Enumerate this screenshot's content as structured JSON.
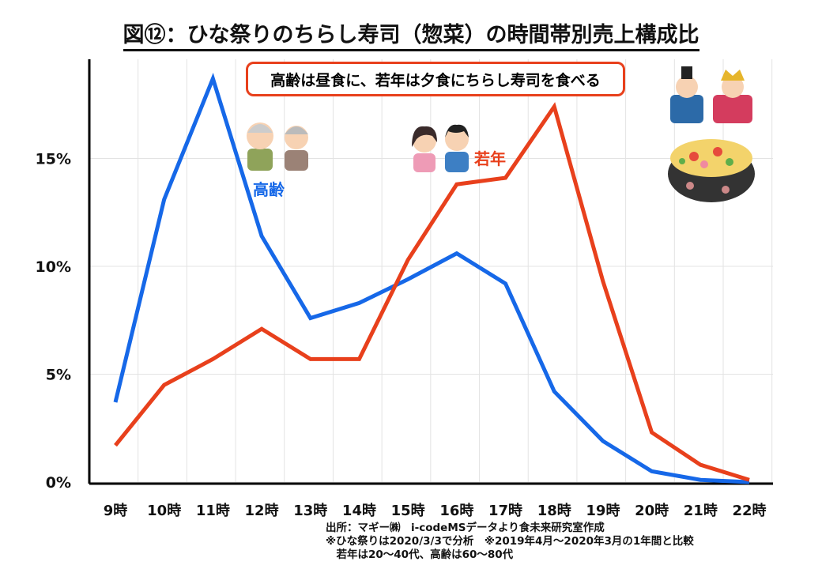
{
  "chart_data": {
    "type": "line",
    "title": "図⑫：ひな祭りのちらし寿司（惣菜）の時間帯別売上構成比",
    "categories": [
      "9時",
      "10時",
      "11時",
      "12時",
      "13時",
      "14時",
      "15時",
      "16時",
      "17時",
      "18時",
      "19時",
      "20時",
      "21時",
      "22時"
    ],
    "yticks": [
      {
        "v": 0,
        "label": "0%"
      },
      {
        "v": 5,
        "label": "5%"
      },
      {
        "v": 10,
        "label": "10%"
      },
      {
        "v": 15,
        "label": "15%"
      }
    ],
    "ylim": [
      0,
      19
    ],
    "grid": true,
    "series": [
      {
        "name": "高齢",
        "color": "#1668e8",
        "values": [
          3.7,
          13.1,
          18.7,
          11.4,
          7.6,
          8.3,
          9.4,
          10.6,
          9.2,
          4.2,
          1.9,
          0.5,
          0.1,
          0.0
        ]
      },
      {
        "name": "若年",
        "color": "#e8401c",
        "values": [
          1.7,
          4.5,
          5.7,
          7.1,
          5.7,
          5.7,
          10.3,
          13.8,
          14.1,
          17.4,
          9.3,
          2.3,
          0.8,
          0.1
        ]
      }
    ],
    "annotation": "高齢は昼食に、若年は夕食にちらし寿司を食べる"
  },
  "footer": {
    "line1": "出所：マギー㈱　i-codeMSデータより食未来研究室作成",
    "line2": "※ひな祭りは2020/3/3で分析　※2019年4月～2020年3月の1年間と比較",
    "line3": "　若年は20～40代、高齢は60～80代"
  }
}
